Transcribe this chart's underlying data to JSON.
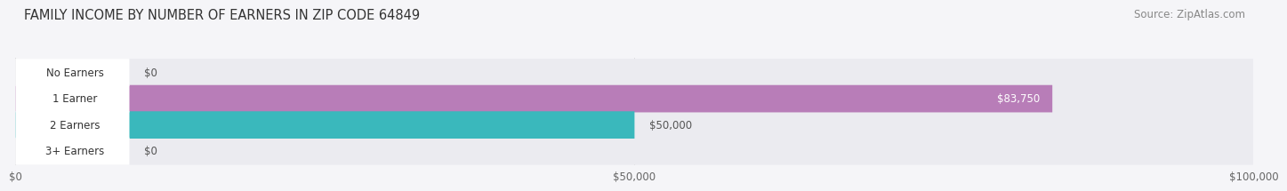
{
  "title": "FAMILY INCOME BY NUMBER OF EARNERS IN ZIP CODE 64849",
  "source": "Source: ZipAtlas.com",
  "categories": [
    "No Earners",
    "1 Earner",
    "2 Earners",
    "3+ Earners"
  ],
  "values": [
    0,
    83750,
    50000,
    0
  ],
  "bar_colors": [
    "#a8c4e0",
    "#b87db8",
    "#3ab8bc",
    "#a8b0e0"
  ],
  "bar_bg_color": "#ebebf0",
  "label_bg_color": "#ffffff",
  "xlim": [
    0,
    100000
  ],
  "xticks": [
    0,
    50000,
    100000
  ],
  "xtick_labels": [
    "$0",
    "$50,000",
    "$100,000"
  ],
  "background_color": "#f5f5f8",
  "title_fontsize": 10.5,
  "source_fontsize": 8.5,
  "label_fontsize": 8.5,
  "value_fontsize": 8.5,
  "value_colors_inside": [
    "white",
    "white",
    "white",
    "white"
  ],
  "value_inside": [
    false,
    true,
    false,
    false
  ]
}
